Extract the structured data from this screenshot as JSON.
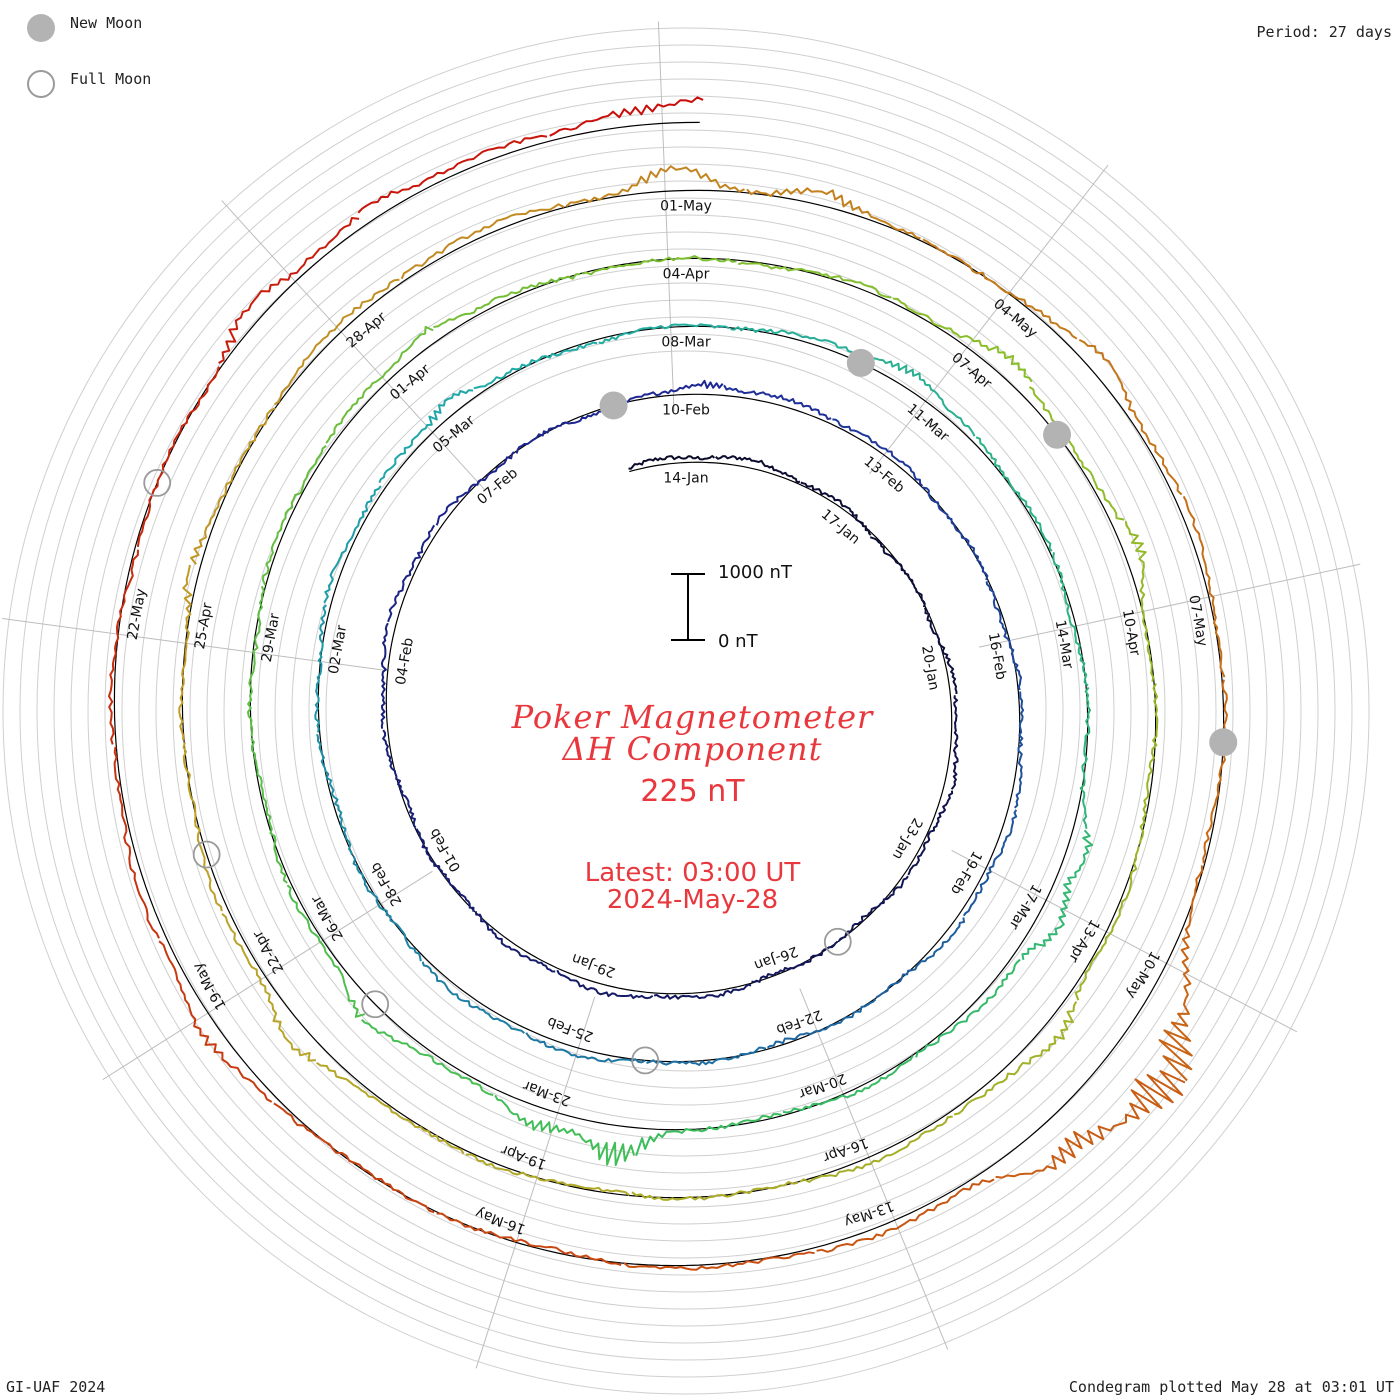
{
  "legend": {
    "new_moon_label": "New Moon",
    "full_moon_label": "Full Moon",
    "new_moon_color": "#b3b3b3",
    "full_moon_color": "#9a9a9a"
  },
  "period_label": "Period: 27 days",
  "title_line1": "Poker Magnetometer",
  "title_line2": "ΔH Component",
  "current_value": "225 nT",
  "latest_time": "Latest: 03:00 UT",
  "latest_date": "2024-May-28",
  "scale": {
    "top_label": "1000 nT",
    "bottom_label": "0 nT"
  },
  "footer_left": "GI-UAF 2024",
  "footer_right": "Condegram plotted May 28 at 03:01 UT",
  "colors": {
    "title": "#e8383d",
    "grid": "#c8c8c8",
    "baseline": "#000000"
  },
  "chart_data": {
    "type": "line",
    "layout": "spiral condegram (27-day period per turn)",
    "period_days": 27,
    "start_date": "2024-01-13",
    "end_date": "2024-05-28",
    "date_labels": [
      {
        "text": "14-Jan",
        "day": 1
      },
      {
        "text": "17-Jan",
        "day": 4
      },
      {
        "text": "20-Jan",
        "day": 7
      },
      {
        "text": "23-Jan",
        "day": 10
      },
      {
        "text": "26-Jan",
        "day": 13
      },
      {
        "text": "29-Jan",
        "day": 16
      },
      {
        "text": "01-Feb",
        "day": 19
      },
      {
        "text": "04-Feb",
        "day": 22
      },
      {
        "text": "07-Feb",
        "day": 25
      },
      {
        "text": "10-Feb",
        "day": 28
      },
      {
        "text": "13-Feb",
        "day": 31
      },
      {
        "text": "16-Feb",
        "day": 34
      },
      {
        "text": "19-Feb",
        "day": 37
      },
      {
        "text": "22-Feb",
        "day": 40
      },
      {
        "text": "25-Feb",
        "day": 43
      },
      {
        "text": "28-Feb",
        "day": 46
      },
      {
        "text": "02-Mar",
        "day": 49
      },
      {
        "text": "05-Mar",
        "day": 52
      },
      {
        "text": "08-Mar",
        "day": 55
      },
      {
        "text": "11-Mar",
        "day": 58
      },
      {
        "text": "14-Mar",
        "day": 61
      },
      {
        "text": "17-Mar",
        "day": 64
      },
      {
        "text": "20-Mar",
        "day": 67
      },
      {
        "text": "23-Mar",
        "day": 70
      },
      {
        "text": "26-Mar",
        "day": 73
      },
      {
        "text": "29-Mar",
        "day": 76
      },
      {
        "text": "01-Apr",
        "day": 79
      },
      {
        "text": "04-Apr",
        "day": 82
      },
      {
        "text": "07-Apr",
        "day": 85
      },
      {
        "text": "10-Apr",
        "day": 88
      },
      {
        "text": "13-Apr",
        "day": 91
      },
      {
        "text": "16-Apr",
        "day": 94
      },
      {
        "text": "19-Apr",
        "day": 97
      },
      {
        "text": "22-Apr",
        "day": 100
      },
      {
        "text": "25-Apr",
        "day": 103
      },
      {
        "text": "28-Apr",
        "day": 106
      },
      {
        "text": "01-May",
        "day": 109
      },
      {
        "text": "04-May",
        "day": 112
      },
      {
        "text": "07-May",
        "day": 115
      },
      {
        "text": "10-May",
        "day": 118
      },
      {
        "text": "13-May",
        "day": 121
      },
      {
        "text": "16-May",
        "day": 124
      },
      {
        "text": "19-May",
        "day": 127
      },
      {
        "text": "22-May",
        "day": 130
      }
    ],
    "new_moons": [
      "2024-02-09",
      "2024-03-10",
      "2024-04-08",
      "2024-05-08"
    ],
    "full_moons": [
      "2024-01-25",
      "2024-02-24",
      "2024-03-25",
      "2024-04-23",
      "2024-05-23"
    ],
    "disturbances_nT": [
      {
        "day": 28.3,
        "amp": 120
      },
      {
        "day": 52.2,
        "amp": 180
      },
      {
        "day": 57.5,
        "amp": 160
      },
      {
        "day": 63.2,
        "amp": 180
      },
      {
        "day": 64.0,
        "amp": 260
      },
      {
        "day": 69.2,
        "amp": 450
      },
      {
        "day": 70.0,
        "amp": 200
      },
      {
        "day": 72.0,
        "amp": 160
      },
      {
        "day": 79.4,
        "amp": 150
      },
      {
        "day": 85.2,
        "amp": 150
      },
      {
        "day": 87.3,
        "amp": 170
      },
      {
        "day": 91.8,
        "amp": 160
      },
      {
        "day": 99.3,
        "amp": 180
      },
      {
        "day": 103.4,
        "amp": 160
      },
      {
        "day": 108.9,
        "amp": 270
      },
      {
        "day": 110.1,
        "amp": 220
      },
      {
        "day": 112.8,
        "amp": 150
      },
      {
        "day": 118.0,
        "amp": 330
      },
      {
        "day": 118.5,
        "amp": 780
      },
      {
        "day": 119.0,
        "amp": 520
      },
      {
        "day": 119.6,
        "amp": 360
      },
      {
        "day": 126.7,
        "amp": 170
      },
      {
        "day": 132.4,
        "amp": 200
      },
      {
        "day": 133.6,
        "amp": 130
      },
      {
        "day": 135.6,
        "amp": 170
      },
      {
        "day": 136.2,
        "amp": 250
      }
    ],
    "current_value_nT": 225
  }
}
